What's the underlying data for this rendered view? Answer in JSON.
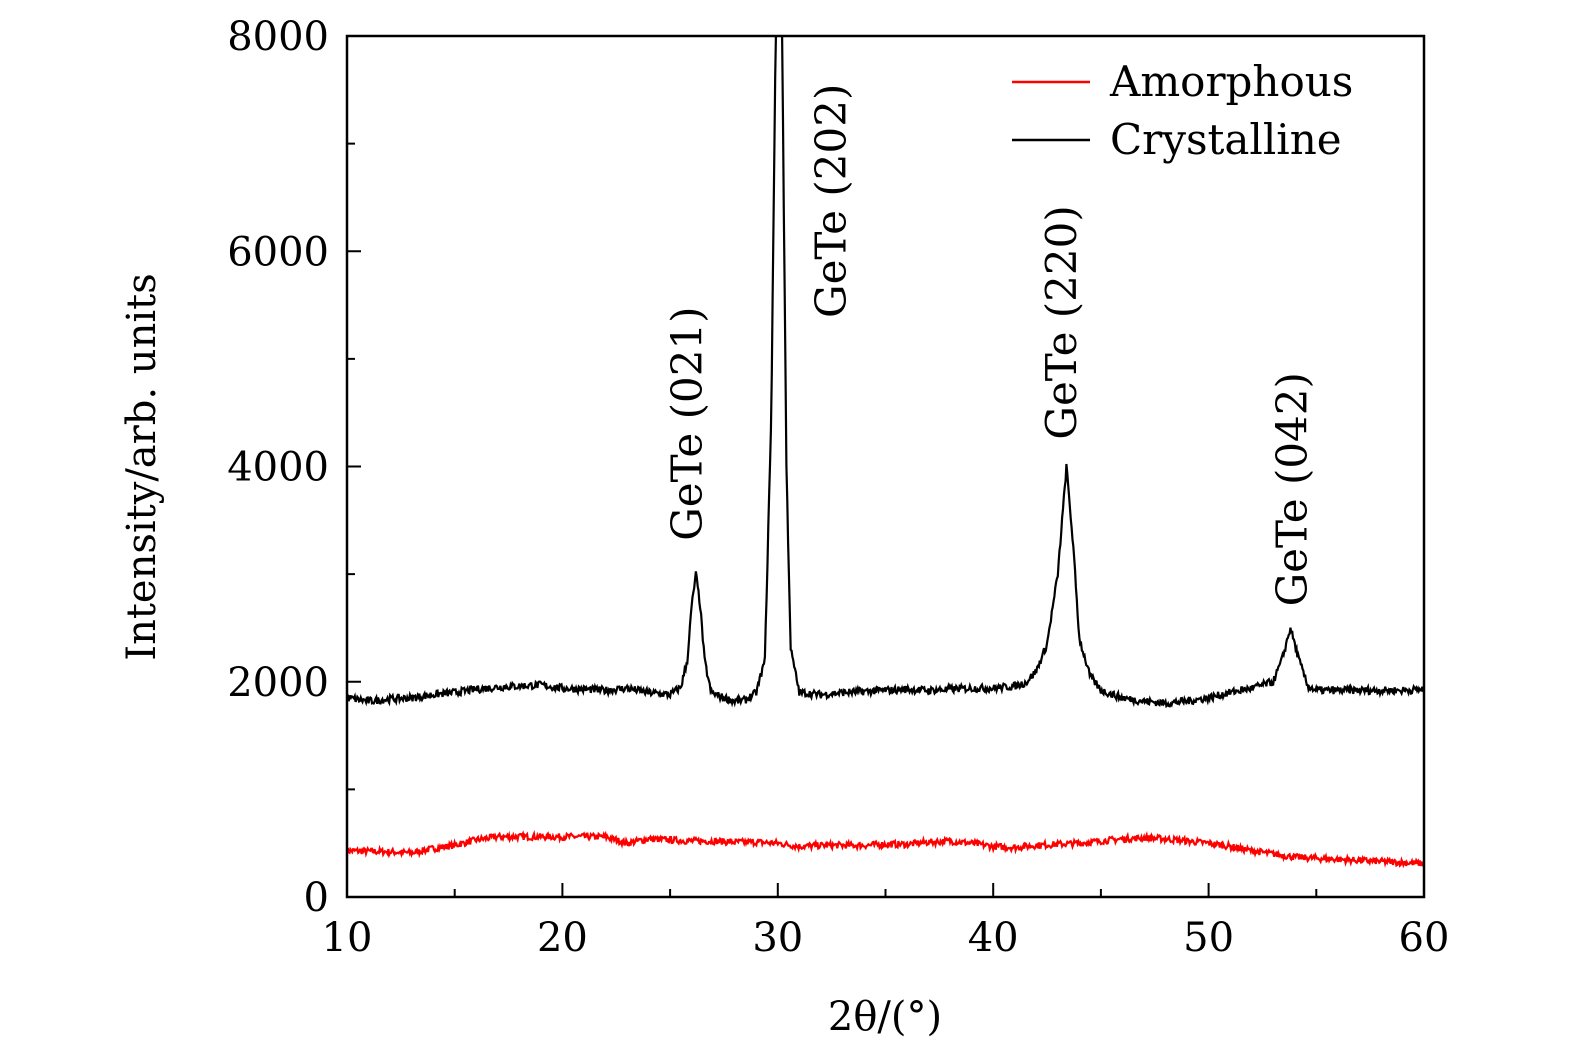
{
  "chart_data": {
    "type": "line",
    "title": "",
    "xlabel": "2θ/(°)",
    "ylabel": "Intensity/arb. units",
    "xlim": [
      10,
      60
    ],
    "ylim": [
      0,
      8000
    ],
    "xticks": [
      10,
      20,
      30,
      40,
      50,
      60
    ],
    "xtick_labels": [
      "10",
      "20",
      "30",
      "40",
      "50",
      "60"
    ],
    "yticks": [
      0,
      2000,
      4000,
      6000,
      8000
    ],
    "ytick_labels": [
      "0",
      "2000",
      "4000",
      "6000",
      "8000"
    ],
    "x_minor_step": 5,
    "y_minor_step": 1000,
    "grid": false,
    "legend_position": "top-right",
    "series": [
      {
        "name": "Amorphous",
        "color": "#ff0000",
        "x": [
          10,
          12,
          13,
          14,
          15,
          16,
          17,
          18,
          19,
          20,
          21,
          22,
          23,
          24,
          25,
          26,
          27,
          28,
          29,
          30,
          31,
          32,
          33,
          34,
          35,
          36,
          37,
          38,
          39,
          40,
          41,
          42,
          43,
          44,
          45,
          46,
          47,
          48,
          49,
          50,
          51,
          52,
          53,
          54,
          55,
          56,
          57,
          58,
          59,
          60
        ],
        "y": [
          430,
          420,
          410,
          450,
          480,
          530,
          560,
          560,
          560,
          560,
          560,
          560,
          500,
          540,
          530,
          520,
          520,
          510,
          510,
          500,
          470,
          480,
          480,
          480,
          490,
          490,
          510,
          520,
          500,
          470,
          460,
          480,
          490,
          500,
          520,
          540,
          550,
          540,
          520,
          500,
          470,
          430,
          400,
          370,
          360,
          350,
          340,
          330,
          320,
          310
        ]
      },
      {
        "name": "Crystalline",
        "color": "#000000",
        "x": [
          10,
          11,
          12,
          13,
          14,
          15,
          16,
          17,
          18,
          19,
          20,
          21,
          22,
          23,
          24,
          25,
          25.5,
          25.8,
          26.0,
          26.2,
          26.4,
          26.6,
          26.9,
          27.5,
          28,
          28.5,
          29,
          29.4,
          29.7,
          29.9,
          30.0,
          30.2,
          30.4,
          30.6,
          31,
          32,
          33,
          34,
          35,
          36,
          37,
          38,
          39,
          40,
          41,
          41.5,
          42,
          42.5,
          43,
          43.4,
          43.7,
          44,
          44.5,
          45,
          46,
          47,
          48,
          49,
          50,
          51,
          52,
          53,
          53.4,
          53.8,
          54.2,
          54.6,
          55,
          56,
          57,
          58,
          59,
          60
        ],
        "y": [
          1850,
          1820,
          1840,
          1850,
          1880,
          1900,
          1930,
          1950,
          1960,
          1970,
          1940,
          1930,
          1920,
          1940,
          1900,
          1880,
          1950,
          2200,
          2700,
          3000,
          2700,
          2200,
          1900,
          1850,
          1820,
          1830,
          1900,
          2200,
          4500,
          8000,
          8500,
          8000,
          4000,
          2300,
          1900,
          1880,
          1900,
          1910,
          1920,
          1930,
          1920,
          1930,
          1940,
          1940,
          1960,
          1990,
          2100,
          2350,
          3000,
          4000,
          3300,
          2400,
          2050,
          1920,
          1850,
          1820,
          1800,
          1820,
          1850,
          1900,
          1940,
          2000,
          2200,
          2500,
          2200,
          1960,
          1920,
          1920,
          1920,
          1920,
          1920,
          1930
        ]
      }
    ],
    "annotations": [
      {
        "text": "GeTe (021)",
        "x": 25.8,
        "y": 3310
      },
      {
        "text": "GeTe (202)",
        "x": 32.5,
        "y": 5380
      },
      {
        "text": "GeTe (220)",
        "x": 43.2,
        "y": 4250
      },
      {
        "text": "GeTe (042)",
        "x": 53.9,
        "y": 2700
      }
    ]
  }
}
